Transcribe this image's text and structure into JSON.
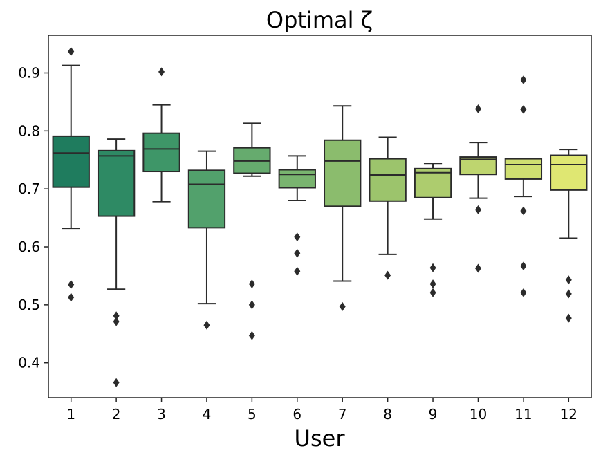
{
  "chart_data": {
    "type": "box",
    "title": "Optimal ζ",
    "xlabel": "User",
    "ylabel": "",
    "ylim": [
      0.34,
      0.965
    ],
    "yticks": [
      0.4,
      0.5,
      0.6,
      0.7,
      0.8,
      0.9
    ],
    "ytick_labels": [
      "0.4",
      "0.5",
      "0.6",
      "0.7",
      "0.8",
      "0.9"
    ],
    "categories": [
      "1",
      "2",
      "3",
      "4",
      "5",
      "6",
      "7",
      "8",
      "9",
      "10",
      "11",
      "12"
    ],
    "grid": false,
    "palette": "YlGn_r",
    "boxes": [
      {
        "user": "1",
        "whisker_low": 0.632,
        "q1": 0.703,
        "median": 0.762,
        "q3": 0.791,
        "whisker_high": 0.913,
        "outliers": [
          0.937,
          0.535,
          0.513
        ],
        "color": "#1f7c5e"
      },
      {
        "user": "2",
        "whisker_low": 0.527,
        "q1": 0.653,
        "median": 0.757,
        "q3": 0.766,
        "whisker_high": 0.786,
        "outliers": [
          0.481,
          0.471,
          0.366
        ],
        "color": "#2e8a64"
      },
      {
        "user": "3",
        "whisker_low": 0.678,
        "q1": 0.73,
        "median": 0.769,
        "q3": 0.796,
        "whisker_high": 0.845,
        "outliers": [
          0.902
        ],
        "color": "#3e9668"
      },
      {
        "user": "4",
        "whisker_low": 0.502,
        "q1": 0.633,
        "median": 0.708,
        "q3": 0.732,
        "whisker_high": 0.765,
        "outliers": [
          0.465
        ],
        "color": "#52a16c"
      },
      {
        "user": "5",
        "whisker_low": 0.722,
        "q1": 0.727,
        "median": 0.748,
        "q3": 0.771,
        "whisker_high": 0.813,
        "outliers": [
          0.536,
          0.5,
          0.447
        ],
        "color": "#66ab6e"
      },
      {
        "user": "6",
        "whisker_low": 0.68,
        "q1": 0.702,
        "median": 0.725,
        "q3": 0.733,
        "whisker_high": 0.757,
        "outliers": [
          0.617,
          0.589,
          0.558
        ],
        "color": "#79b46f"
      },
      {
        "user": "7",
        "whisker_low": 0.541,
        "q1": 0.67,
        "median": 0.748,
        "q3": 0.784,
        "whisker_high": 0.843,
        "outliers": [
          0.497
        ],
        "color": "#8bbc6d"
      },
      {
        "user": "8",
        "whisker_low": 0.587,
        "q1": 0.679,
        "median": 0.724,
        "q3": 0.752,
        "whisker_high": 0.789,
        "outliers": [
          0.551
        ],
        "color": "#9cc46c"
      },
      {
        "user": "9",
        "whisker_low": 0.648,
        "q1": 0.685,
        "median": 0.728,
        "q3": 0.735,
        "whisker_high": 0.744,
        "outliers": [
          0.564,
          0.536,
          0.521
        ],
        "color": "#adcc6e"
      },
      {
        "user": "10",
        "whisker_low": 0.684,
        "q1": 0.725,
        "median": 0.751,
        "q3": 0.755,
        "whisker_high": 0.78,
        "outliers": [
          0.838,
          0.664,
          0.563
        ],
        "color": "#bed56f"
      },
      {
        "user": "11",
        "whisker_low": 0.687,
        "q1": 0.717,
        "median": 0.742,
        "q3": 0.752,
        "whisker_high": 0.752,
        "outliers": [
          0.888,
          0.837,
          0.662,
          0.567,
          0.521
        ],
        "color": "#cfdf71"
      },
      {
        "user": "12",
        "whisker_low": 0.615,
        "q1": 0.698,
        "median": 0.742,
        "q3": 0.758,
        "whisker_high": 0.768,
        "outliers": [
          0.543,
          0.519,
          0.477
        ],
        "color": "#dfe772"
      }
    ]
  }
}
